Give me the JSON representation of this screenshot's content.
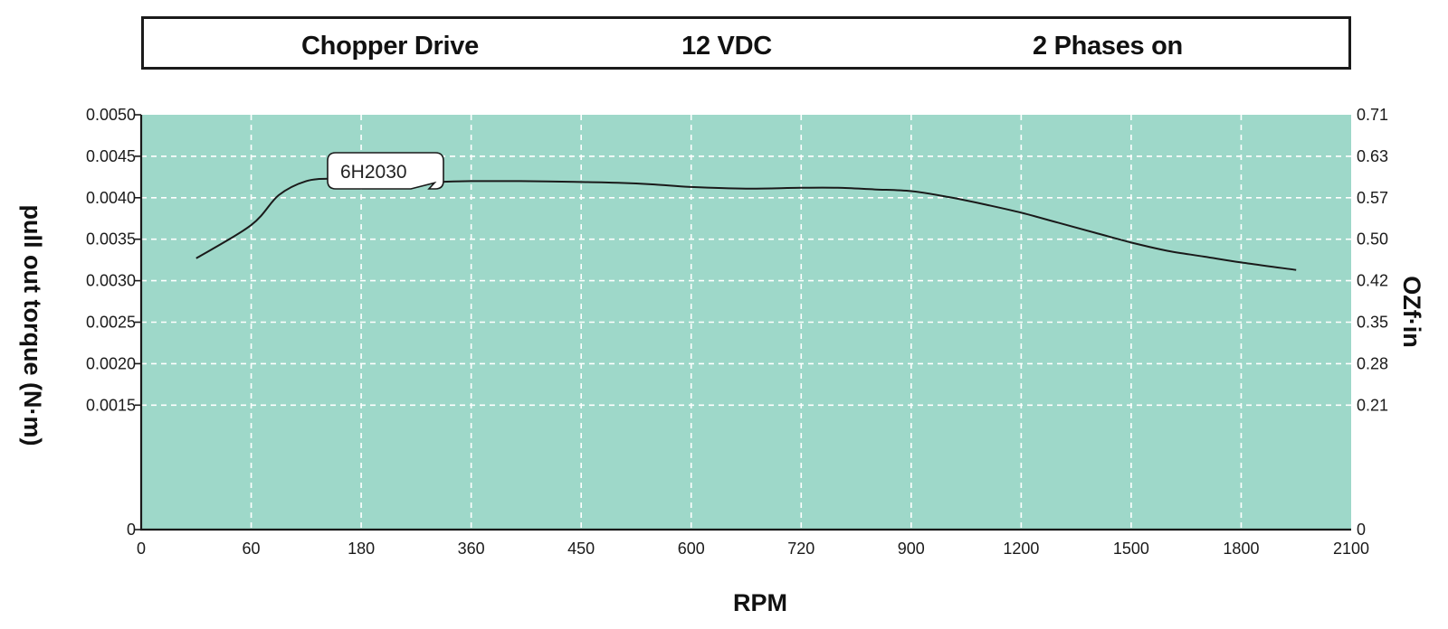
{
  "header": {
    "drive": "Chopper Drive",
    "voltage": "12 VDC",
    "phases": "2 Phases on"
  },
  "chart_data": {
    "type": "line",
    "title": "",
    "xlabel": "RPM",
    "ylabel": "pull out torque  (N·m)",
    "ylabel_right": "OZf·in",
    "x_ticks": [
      "0",
      "60",
      "180",
      "360",
      "450",
      "600",
      "720",
      "900",
      "1200",
      "1500",
      "1800",
      "2100"
    ],
    "y_ticks": [
      "0",
      "0.0015",
      "0.0020",
      "0.0025",
      "0.0030",
      "0.0035",
      "0.0040",
      "0.0045",
      "0.0050"
    ],
    "y_ticks_right": [
      "0",
      "0.21",
      "0.28",
      "0.35",
      "0.42",
      "0.50",
      "0.57",
      "0.63",
      "0.71"
    ],
    "y_tick_values": [
      0,
      0.0015,
      0.002,
      0.0025,
      0.003,
      0.0035,
      0.004,
      0.0045,
      0.005
    ],
    "x_scale_note": "categorical",
    "ylim": [
      0,
      0.005
    ],
    "grid": true,
    "legend": "none",
    "background_color": "#9ed8c9",
    "line_color": "#1a1a1a",
    "grid_color": "#ffffff",
    "series": [
      {
        "name": "6H2030",
        "x": [
          30,
          60,
          90,
          120,
          150,
          180,
          200,
          250,
          300,
          360,
          400,
          450,
          500,
          550,
          600,
          660,
          720,
          780,
          840,
          900,
          1000,
          1100,
          1200,
          1300,
          1400,
          1500,
          1600,
          1700,
          1800,
          1950
        ],
        "y": [
          0.00327,
          0.00367,
          0.00403,
          0.0042,
          0.00423,
          0.00422,
          0.00419,
          0.00417,
          0.00419,
          0.0042,
          0.0042,
          0.00419,
          0.00418,
          0.00416,
          0.00413,
          0.00411,
          0.00412,
          0.00412,
          0.0041,
          0.00408,
          0.00401,
          0.00392,
          0.00382,
          0.0037,
          0.00358,
          0.00346,
          0.00336,
          0.00329,
          0.00322,
          0.00313
        ]
      }
    ],
    "annotations": [
      {
        "text": "6H2030",
        "series": "6H2030"
      }
    ]
  }
}
